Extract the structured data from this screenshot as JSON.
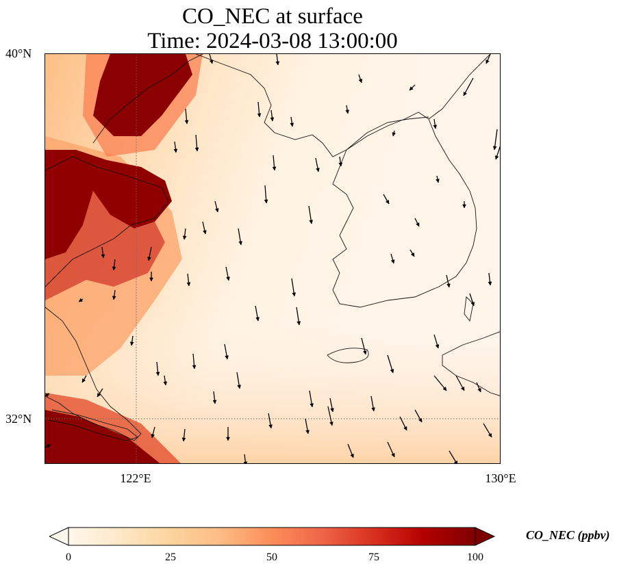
{
  "title": {
    "line1": "CO_NEC at surface",
    "line2": "Time: 2024-03-08 13:00:00"
  },
  "map": {
    "lat_range": [
      31.0,
      40.0
    ],
    "lon_range": [
      120.0,
      130.0
    ],
    "lat_labels": [
      {
        "value": 40,
        "text": "40°N"
      },
      {
        "value": 32,
        "text": "32°N"
      }
    ],
    "lon_labels": [
      {
        "value": 122,
        "text": "122°E"
      },
      {
        "value": 130,
        "text": "130°E"
      }
    ],
    "gridlines": {
      "lat": [
        32
      ],
      "lon": [
        122
      ],
      "style": "dotted"
    },
    "features": [
      "coastlines",
      "country-borders",
      "wind-vectors"
    ]
  },
  "colorbar": {
    "label": "CO_NEC (ppbv)",
    "min": 0,
    "max": 100,
    "extend": "both",
    "ticks": [
      {
        "value": 0,
        "text": "0"
      },
      {
        "value": 25,
        "text": "25"
      },
      {
        "value": 50,
        "text": "50"
      },
      {
        "value": 75,
        "text": "75"
      },
      {
        "value": 100,
        "text": "100"
      }
    ],
    "colormap": "OrRd",
    "colors": [
      "#fff7ec",
      "#fee8c8",
      "#fdd49e",
      "#fdbb84",
      "#fc8d59",
      "#ef6548",
      "#d7301f",
      "#b30000",
      "#7f0000"
    ]
  }
}
